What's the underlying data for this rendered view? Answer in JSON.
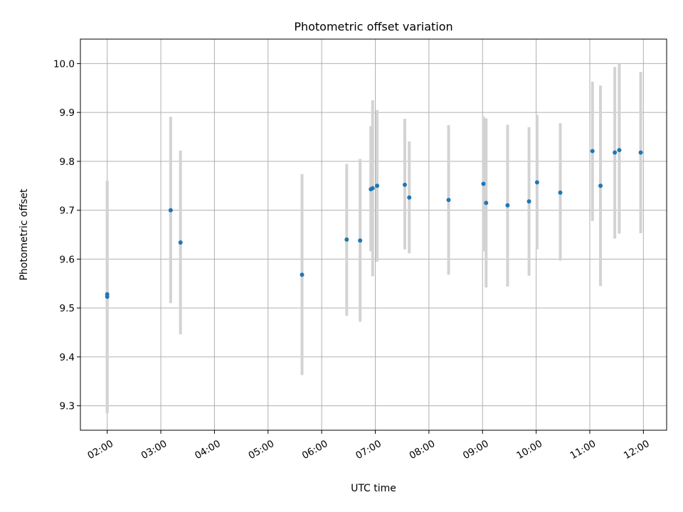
{
  "chart_data": {
    "type": "scatter",
    "title": "Photometric offset variation",
    "xlabel": "UTC time",
    "ylabel": "Photometric offset",
    "x_axis": "time",
    "xlim": [
      "01:30",
      "12:26"
    ],
    "ylim": [
      9.25,
      10.05
    ],
    "x_ticks": [
      "02:00",
      "03:00",
      "04:00",
      "05:00",
      "06:00",
      "07:00",
      "08:00",
      "09:00",
      "10:00",
      "11:00",
      "12:00"
    ],
    "y_ticks": [
      9.3,
      9.4,
      9.5,
      9.6,
      9.7,
      9.8,
      9.9,
      10.0
    ],
    "y_tick_labels": [
      "9.3",
      "9.4",
      "9.5",
      "9.6",
      "9.7",
      "9.8",
      "9.9",
      "10.0"
    ],
    "grid": true,
    "point_color": "#1f77b4",
    "errorbar_color": "#d3d3d3",
    "series": [
      {
        "points": [
          {
            "t": "02:00",
            "y": 9.528,
            "err_low": 9.285,
            "err_high": 9.76
          },
          {
            "t": "02:00",
            "y": 9.523,
            "err_low": 9.285,
            "err_high": 9.76
          },
          {
            "t": "03:11",
            "y": 9.7,
            "err_low": 9.51,
            "err_high": 9.891
          },
          {
            "t": "03:22",
            "y": 9.634,
            "err_low": 9.446,
            "err_high": 9.822
          },
          {
            "t": "05:38",
            "y": 9.568,
            "err_low": 9.363,
            "err_high": 9.774
          },
          {
            "t": "06:28",
            "y": 9.64,
            "err_low": 9.484,
            "err_high": 9.795
          },
          {
            "t": "06:43",
            "y": 9.638,
            "err_low": 9.472,
            "err_high": 9.805
          },
          {
            "t": "06:55",
            "y": 9.743,
            "err_low": 9.616,
            "err_high": 9.872
          },
          {
            "t": "06:57",
            "y": 9.745,
            "err_low": 9.565,
            "err_high": 9.925
          },
          {
            "t": "07:02",
            "y": 9.75,
            "err_low": 9.595,
            "err_high": 9.905
          },
          {
            "t": "07:33",
            "y": 9.752,
            "err_low": 9.62,
            "err_high": 9.887
          },
          {
            "t": "07:38",
            "y": 9.726,
            "err_low": 9.612,
            "err_high": 9.841
          },
          {
            "t": "08:22",
            "y": 9.721,
            "err_low": 9.568,
            "err_high": 9.874
          },
          {
            "t": "09:01",
            "y": 9.754,
            "err_low": 9.616,
            "err_high": 9.892
          },
          {
            "t": "09:04",
            "y": 9.715,
            "err_low": 9.542,
            "err_high": 9.888
          },
          {
            "t": "09:28",
            "y": 9.71,
            "err_low": 9.544,
            "err_high": 9.875
          },
          {
            "t": "09:52",
            "y": 9.718,
            "err_low": 9.566,
            "err_high": 9.87
          },
          {
            "t": "10:01",
            "y": 9.757,
            "err_low": 9.62,
            "err_high": 9.895
          },
          {
            "t": "10:27",
            "y": 9.736,
            "err_low": 9.597,
            "err_high": 9.878
          },
          {
            "t": "11:03",
            "y": 9.821,
            "err_low": 9.678,
            "err_high": 9.963
          },
          {
            "t": "11:12",
            "y": 9.75,
            "err_low": 9.545,
            "err_high": 9.955
          },
          {
            "t": "11:28",
            "y": 9.818,
            "err_low": 9.642,
            "err_high": 9.993
          },
          {
            "t": "11:33",
            "y": 9.823,
            "err_low": 9.652,
            "err_high": 10.0
          },
          {
            "t": "11:57",
            "y": 9.818,
            "err_low": 9.653,
            "err_high": 9.983
          }
        ]
      }
    ]
  }
}
